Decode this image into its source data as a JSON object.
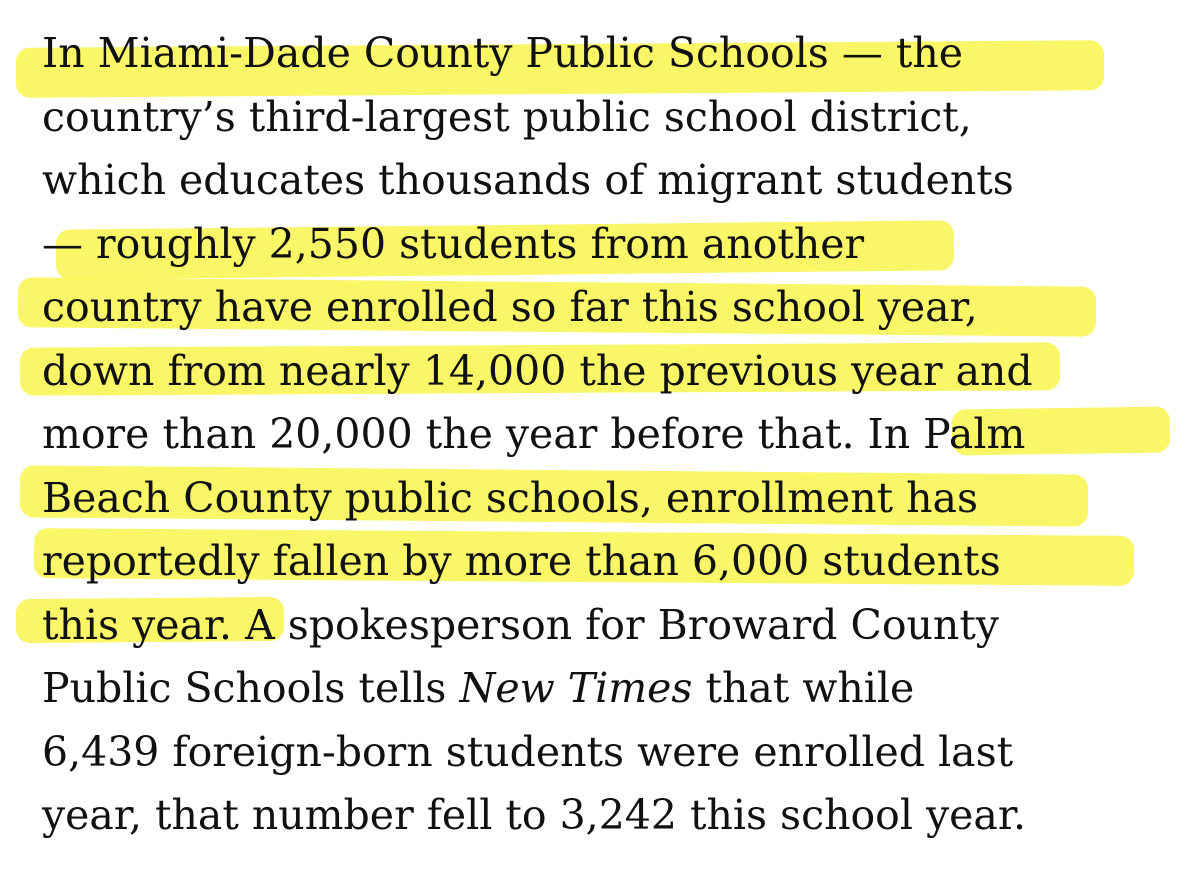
{
  "article": {
    "lines": [
      "In Miami-Dade County Public Schools — the",
      "country’s third-largest public school district,",
      "which educates thousands of migrant students",
      "— roughly 2,550 students from another",
      "country have enrolled so far this school year,",
      "down from nearly 14,000 the previous year and",
      "more than 20,000 the year before that. In Palm",
      "Beach County public schools, enrollment has",
      "reportedly fallen by more than 6,000 students",
      "this year. A spokesperson for Broward County",
      "Public Schools tells ",
      "New Times",
      " that while",
      "6,439 foreign-born students were enrolled last",
      "year, that number fell to 3,242 this school year."
    ]
  },
  "highlight_color": "#f9f55a"
}
